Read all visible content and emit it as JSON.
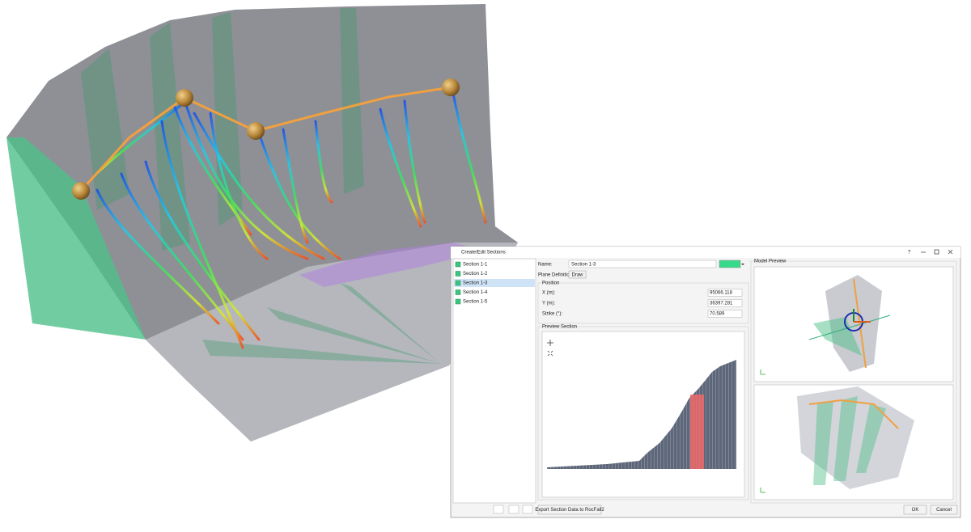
{
  "dialog": {
    "title": "Create/Edit Sections",
    "help": "?",
    "sections": [
      "Section 1-1",
      "Section 1-2",
      "Section 1-3",
      "Section 1-4",
      "Section 1-5"
    ],
    "name_label": "Name:",
    "name_value": "Section 1-3",
    "plane_definition_label": "Plane Definition:",
    "draw_button": "Draw",
    "position": {
      "title": "Position",
      "fields": [
        {
          "label": "X (m):",
          "value": 95066.118
        },
        {
          "label": "Y (m):",
          "value": 36397.281
        },
        {
          "label": "Strike (°):",
          "value": 70.589
        }
      ]
    },
    "preview_section_title": "Preview Section",
    "model_preview_title": "Model Preview",
    "export_button": "Export Section Data to RocFall2",
    "ok_button": "OK",
    "cancel_button": "Cancel"
  }
}
